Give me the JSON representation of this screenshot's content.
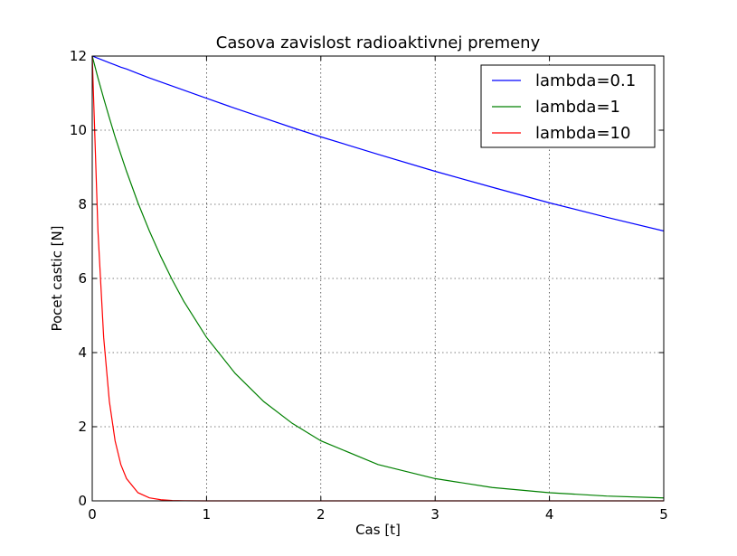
{
  "chart_data": {
    "type": "line",
    "title": "Casova zavislost radioaktivnej premeny",
    "xlabel": "Cas [t]",
    "ylabel": "Pocet castic [N]",
    "xlim": [
      0,
      5
    ],
    "ylim": [
      0,
      12
    ],
    "xticks": [
      "0",
      "1",
      "2",
      "3",
      "4",
      "5"
    ],
    "yticks": [
      "0",
      "2",
      "4",
      "6",
      "8",
      "10",
      "12"
    ],
    "grid": true,
    "legend_position": "top-right",
    "x": [
      0,
      0.05,
      0.1,
      0.15,
      0.2,
      0.25,
      0.3,
      0.4,
      0.5,
      0.6,
      0.7,
      0.8,
      1,
      1.25,
      1.5,
      1.75,
      2,
      2.5,
      3,
      3.5,
      4,
      4.5,
      5
    ],
    "series": [
      {
        "name": "lambda=0.1",
        "color": "#0000ff",
        "values": [
          12,
          11.94,
          11.88,
          11.82,
          11.76,
          11.7,
          11.65,
          11.53,
          11.41,
          11.3,
          11.19,
          11.08,
          10.86,
          10.59,
          10.33,
          10.07,
          9.82,
          9.35,
          8.89,
          8.46,
          8.04,
          7.65,
          7.28
        ]
      },
      {
        "name": "lambda=1",
        "color": "#008000",
        "values": [
          12,
          11.41,
          10.86,
          10.33,
          9.82,
          9.35,
          8.89,
          8.04,
          7.28,
          6.59,
          5.96,
          5.39,
          4.41,
          3.44,
          2.68,
          2.09,
          1.62,
          0.98,
          0.6,
          0.36,
          0.22,
          0.13,
          0.08
        ]
      },
      {
        "name": "lambda=10",
        "color": "#ff0000",
        "values": [
          12,
          7.28,
          4.41,
          2.68,
          1.62,
          0.98,
          0.6,
          0.22,
          0.08,
          0.03,
          0.01,
          0.004,
          0,
          0,
          0,
          0,
          0,
          0,
          0,
          0,
          0,
          0,
          0
        ]
      }
    ]
  }
}
